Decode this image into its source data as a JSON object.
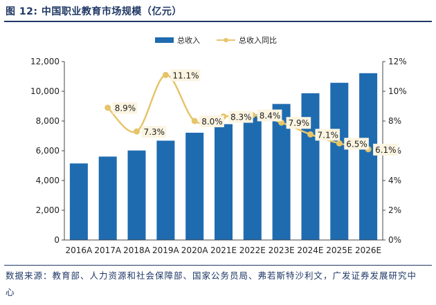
{
  "figure": {
    "title": "图 12: 中国职业教育市场规模（亿元）",
    "source": "数据来源：教育部、人力资源和社会保障部、国家公务员局、弗若斯特沙利文，广发证券发展研究中心"
  },
  "chart_data": {
    "type": "bar",
    "categories": [
      "2016A",
      "2017A",
      "2018A",
      "2019A",
      "2020A",
      "2021E",
      "2022E",
      "2023E",
      "2024E",
      "2025E",
      "2026E"
    ],
    "series": [
      {
        "name": "总收入",
        "type": "bar",
        "axis": "left",
        "color": "#1f6bb0",
        "values": [
          5150,
          5610,
          6020,
          6680,
          7215,
          7790,
          8440,
          9150,
          9870,
          10570,
          11220
        ]
      },
      {
        "name": "总收入同比",
        "type": "line",
        "axis": "right",
        "color": "#e6c46a",
        "values": [
          null,
          8.9,
          7.3,
          11.1,
          8.0,
          8.3,
          8.4,
          7.9,
          7.1,
          6.5,
          6.1
        ],
        "labels": [
          "",
          "8.9%",
          "7.3%",
          "11.1%",
          "8.0%",
          "8.3%",
          "8.4%",
          "7.9%",
          "7.1%",
          "6.5%",
          "6.1%"
        ]
      }
    ],
    "y_left": {
      "ylim": [
        0,
        12000
      ],
      "ticks": [
        0,
        2000,
        4000,
        6000,
        8000,
        10000,
        12000
      ],
      "tick_labels": [
        "0",
        "2,000",
        "4,000",
        "6,000",
        "8,000",
        "10,000",
        "12,000"
      ]
    },
    "y_right": {
      "ylim": [
        0,
        12
      ],
      "ticks": [
        0,
        2,
        4,
        6,
        8,
        10,
        12
      ],
      "tick_labels": [
        "0%",
        "2%",
        "4%",
        "6%",
        "8%",
        "10%",
        "12%"
      ]
    },
    "legend": {
      "position": "top-center",
      "entries": [
        "总收入",
        "总收入同比"
      ]
    },
    "grid": false
  }
}
